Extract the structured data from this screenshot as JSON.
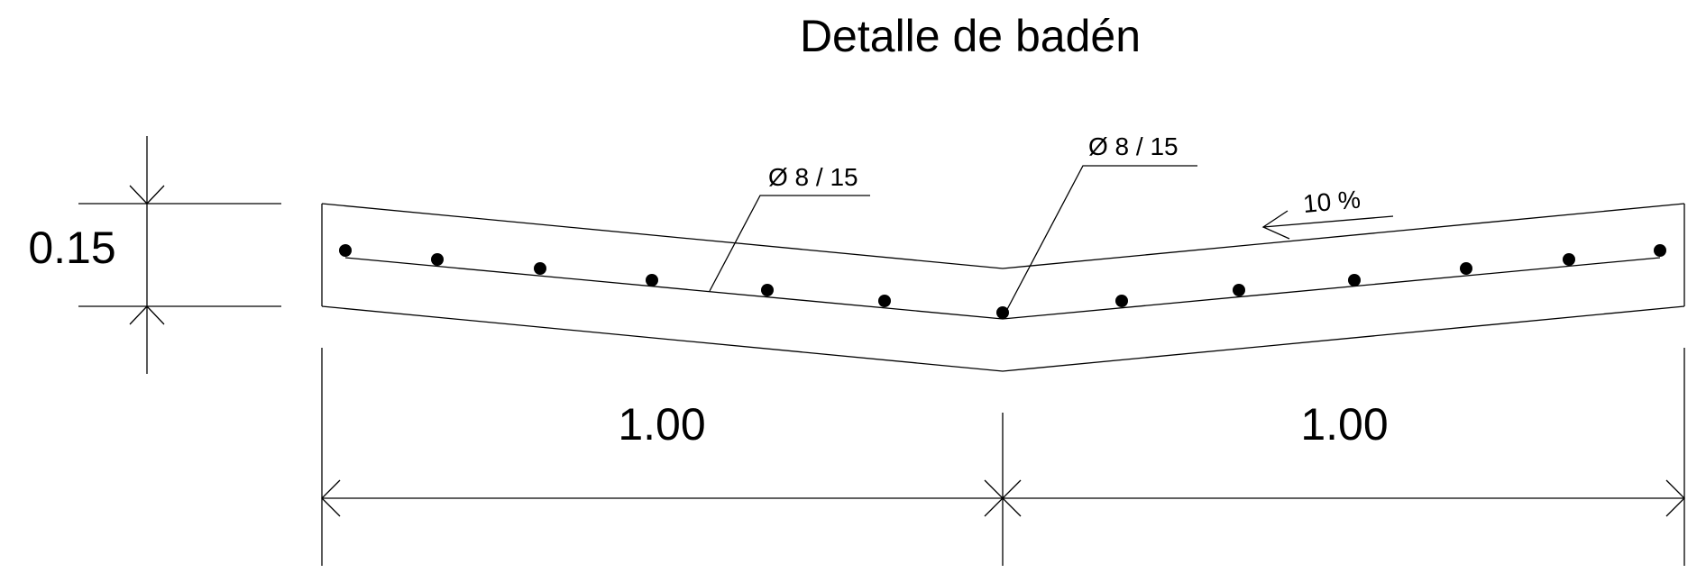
{
  "title": "Detalle de badén",
  "dimensions": {
    "thickness": "0.15",
    "left_width": "1.00",
    "right_width": "1.00"
  },
  "annotations": {
    "rebar_left": "Ø 8 / 15",
    "rebar_center": "Ø 8 / 15",
    "slope": "10 %"
  },
  "colors": {
    "line": "#000000",
    "background": "#ffffff"
  }
}
